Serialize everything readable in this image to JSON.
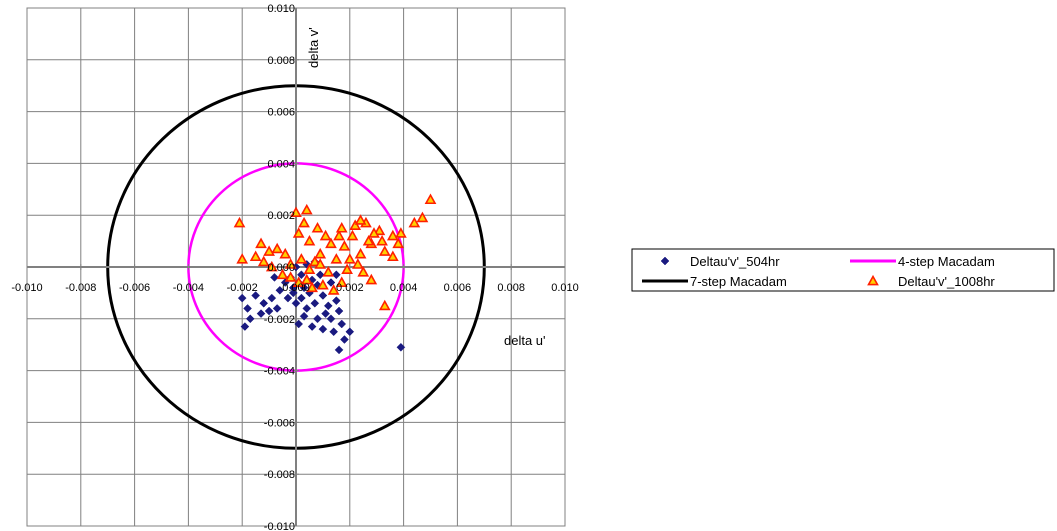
{
  "chart_data": {
    "type": "scatter",
    "xlabel": "delta u'",
    "ylabel": "delta v'",
    "xlim": [
      -0.01,
      0.01
    ],
    "ylim": [
      -0.01,
      0.01
    ],
    "x_ticks": [
      "-0.010",
      "-0.008",
      "-0.006",
      "-0.004",
      "-0.002",
      "0.000",
      "0.002",
      "0.004",
      "0.006",
      "0.008",
      "0.010"
    ],
    "y_ticks": [
      "0.010",
      "0.008",
      "0.006",
      "0.004",
      "0.002",
      "0.000",
      "-0.002",
      "-0.004",
      "-0.006",
      "-0.008",
      "-0.010"
    ],
    "grid": true,
    "legend_position": "right",
    "series": [
      {
        "name": "Deltau'v'_504hr",
        "kind": "points",
        "marker": "diamond",
        "color": "#1a1a80",
        "points": [
          [
            0.0,
            0.0
          ],
          [
            0.0002,
            -0.0003
          ],
          [
            0.0004,
            0.0001
          ],
          [
            0.0001,
            -0.0006
          ],
          [
            0.0003,
            -0.0008
          ],
          [
            0.0006,
            -0.0005
          ],
          [
            -0.0002,
            -0.0004
          ],
          [
            -0.0004,
            -0.0006
          ],
          [
            -0.0001,
            -0.001
          ],
          [
            0.0002,
            -0.0012
          ],
          [
            0.0005,
            -0.001
          ],
          [
            0.0008,
            -0.0007
          ],
          [
            0.001,
            -0.0011
          ],
          [
            0.0007,
            -0.0014
          ],
          [
            0.0004,
            -0.0016
          ],
          [
            0.0,
            -0.0014
          ],
          [
            -0.0003,
            -0.0012
          ],
          [
            -0.0006,
            -0.0009
          ],
          [
            -0.0009,
            -0.0012
          ],
          [
            -0.0012,
            -0.0014
          ],
          [
            -0.0015,
            -0.0011
          ],
          [
            -0.0018,
            -0.0016
          ],
          [
            -0.002,
            -0.0012
          ],
          [
            -0.0017,
            -0.002
          ],
          [
            -0.0013,
            -0.0018
          ],
          [
            -0.001,
            -0.0017
          ],
          [
            -0.0007,
            -0.0016
          ],
          [
            -0.0019,
            -0.0023
          ],
          [
            0.0012,
            -0.0015
          ],
          [
            0.0015,
            -0.0013
          ],
          [
            0.0011,
            -0.0018
          ],
          [
            0.0008,
            -0.002
          ],
          [
            0.0006,
            -0.0023
          ],
          [
            0.001,
            -0.0024
          ],
          [
            0.0013,
            -0.002
          ],
          [
            0.0016,
            -0.0017
          ],
          [
            0.0017,
            -0.0022
          ],
          [
            0.0014,
            -0.0025
          ],
          [
            0.0018,
            -0.0028
          ],
          [
            0.002,
            -0.0025
          ],
          [
            0.0016,
            -0.0032
          ],
          [
            0.0039,
            -0.0031
          ],
          [
            0.0015,
            -0.0003
          ],
          [
            0.0013,
            -0.0006
          ],
          [
            0.0003,
            -0.0019
          ],
          [
            0.0001,
            -0.0022
          ],
          [
            -0.0001,
            -0.0008
          ],
          [
            0.0007,
            0.0002
          ],
          [
            0.0009,
            -0.0003
          ],
          [
            -0.0008,
            -0.0004
          ]
        ]
      },
      {
        "name": "4-step Macadam",
        "kind": "circle",
        "radius": 0.004,
        "color": "#ff00ff"
      },
      {
        "name": "7-step Macadam",
        "kind": "circle",
        "radius": 0.007,
        "color": "#000000"
      },
      {
        "name": "Deltau'v'_1008hr",
        "kind": "points",
        "marker": "triangle",
        "color": "#ff2000",
        "fill": "#ffd000",
        "points": [
          [
            0.0,
            0.0021
          ],
          [
            0.0004,
            0.0022
          ],
          [
            0.0003,
            0.0017
          ],
          [
            0.0008,
            0.0015
          ],
          [
            0.0011,
            0.0012
          ],
          [
            0.0013,
            0.0009
          ],
          [
            0.0016,
            0.0012
          ],
          [
            0.0018,
            0.0008
          ],
          [
            0.002,
            0.0003
          ],
          [
            0.0024,
            0.0005
          ],
          [
            0.0028,
            0.0009
          ],
          [
            0.0032,
            0.001
          ],
          [
            0.0036,
            0.0004
          ],
          [
            0.0038,
            0.0009
          ],
          [
            0.0044,
            0.0017
          ],
          [
            0.0047,
            0.0019
          ],
          [
            0.0026,
            0.0017
          ],
          [
            0.0022,
            0.0016
          ],
          [
            0.0009,
            0.0005
          ],
          [
            0.0007,
            0.0002
          ],
          [
            0.0005,
            -0.0001
          ],
          [
            0.0002,
            0.0003
          ],
          [
            -0.0002,
            0.0001
          ],
          [
            -0.0004,
            0.0005
          ],
          [
            -0.0007,
            0.0007
          ],
          [
            -0.001,
            0.0006
          ],
          [
            -0.0013,
            0.0009
          ],
          [
            -0.0015,
            0.0004
          ],
          [
            -0.0012,
            0.0002
          ],
          [
            -0.0009,
            0.0
          ],
          [
            -0.0005,
            -0.0003
          ],
          [
            -0.0002,
            -0.0004
          ],
          [
            0.0001,
            -0.0006
          ],
          [
            0.0004,
            -0.0005
          ],
          [
            0.0006,
            -0.0008
          ],
          [
            0.001,
            -0.0007
          ],
          [
            0.0014,
            -0.0009
          ],
          [
            0.0017,
            -0.0006
          ],
          [
            0.0019,
            -0.0001
          ],
          [
            0.0023,
            0.0001
          ],
          [
            0.0025,
            -0.0002
          ],
          [
            0.0028,
            -0.0005
          ],
          [
            0.0033,
            -0.0015
          ],
          [
            0.0036,
            0.0012
          ],
          [
            0.0031,
            0.0014
          ],
          [
            -0.0021,
            0.0017
          ],
          [
            -0.002,
            0.0003
          ],
          [
            0.0001,
            0.0013
          ],
          [
            0.0005,
            0.001
          ],
          [
            0.0015,
            0.0003
          ],
          [
            0.0012,
            -0.0002
          ],
          [
            0.0009,
            0.0001
          ],
          [
            0.0017,
            0.0015
          ],
          [
            0.0021,
            0.0012
          ],
          [
            0.005,
            0.0026
          ],
          [
            0.0024,
            0.0018
          ],
          [
            0.0029,
            0.0013
          ],
          [
            0.0039,
            0.0013
          ],
          [
            0.0033,
            0.0006
          ],
          [
            0.0027,
            0.001
          ]
        ]
      }
    ]
  }
}
